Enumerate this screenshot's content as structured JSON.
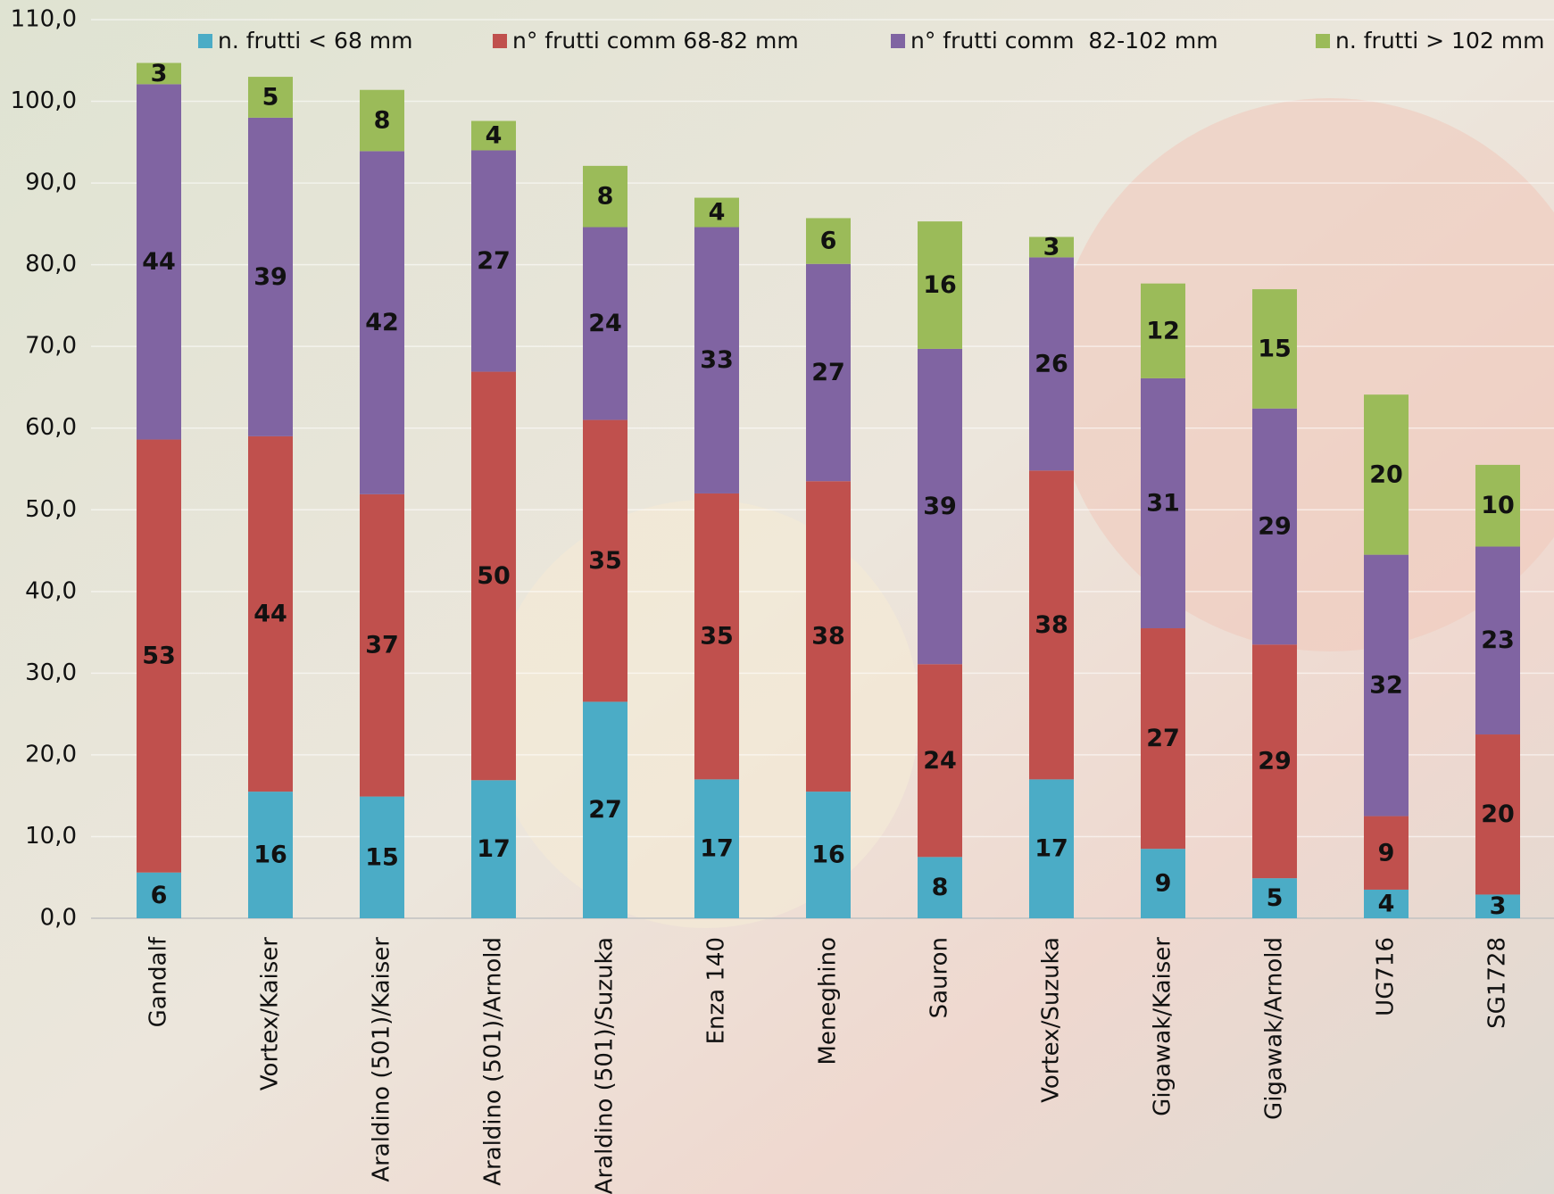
{
  "chart_data": {
    "type": "stacked-bar",
    "categories": [
      "Gandalf",
      "Vortex/Kaiser",
      "Araldino (501)/Kaiser",
      "Araldino (501)/Arnold",
      "Araldino (501)/Suzuka",
      "Enza 140",
      "Meneghino",
      "Sauron",
      "Vortex/Suzuka",
      "Gigawak/Kaiser",
      "Gigawak/Arnold",
      "UG716",
      "SG1728"
    ],
    "series": [
      {
        "name": "n. frutti < 68 mm",
        "color": "#4bacc6",
        "label_color": "#111111",
        "values": [
          5.6,
          15.5,
          14.9,
          16.9,
          26.5,
          17.0,
          15.5,
          7.5,
          17.0,
          8.5,
          4.9,
          3.5,
          2.9
        ],
        "value_labels": [
          "6",
          "16",
          "15",
          "17",
          "27",
          "17",
          "16",
          "8",
          "17",
          "9",
          "5",
          "4",
          "3"
        ]
      },
      {
        "name": "n° frutti comm 68-82 mm",
        "color": "#c0504d",
        "label_color": "#ffffff",
        "values": [
          53.0,
          43.5,
          37.0,
          50.0,
          34.5,
          35.0,
          38.0,
          23.6,
          37.8,
          27.0,
          28.6,
          9.0,
          19.6
        ],
        "value_labels": [
          "53",
          "44",
          "37",
          "50",
          "35",
          "35",
          "38",
          "24",
          "38",
          "27",
          "29",
          "9",
          "20"
        ]
      },
      {
        "name": "n° frutti comm  82-102 mm",
        "color": "#8064a2",
        "label_color": "#ffffff",
        "values": [
          43.5,
          39.0,
          42.0,
          27.1,
          23.6,
          32.6,
          26.6,
          38.6,
          26.1,
          30.6,
          28.9,
          32.0,
          23.0
        ],
        "value_labels": [
          "44",
          "39",
          "42",
          "27",
          "24",
          "33",
          "27",
          "39",
          "26",
          "31",
          "29",
          "32",
          "23"
        ]
      },
      {
        "name": "n. frutti > 102 mm",
        "color": "#9bbb59",
        "label_color": "#111111",
        "values": [
          2.6,
          5.0,
          7.5,
          3.6,
          7.5,
          3.6,
          5.6,
          15.6,
          2.5,
          11.6,
          14.6,
          19.6,
          10.0
        ],
        "value_labels": [
          "3",
          "5",
          "8",
          "4",
          "8",
          "4",
          "6",
          "16",
          "3",
          "12",
          "15",
          "20",
          "10"
        ]
      }
    ],
    "ylim": [
      0,
      110
    ],
    "yticks": [
      {
        "value": 0,
        "label": "0,0"
      },
      {
        "value": 10,
        "label": "10,0"
      },
      {
        "value": 20,
        "label": "20,0"
      },
      {
        "value": 30,
        "label": "30,0"
      },
      {
        "value": 40,
        "label": "40,0"
      },
      {
        "value": 50,
        "label": "50,0"
      },
      {
        "value": 60,
        "label": "60,0"
      },
      {
        "value": 70,
        "label": "70,0"
      },
      {
        "value": 80,
        "label": "80,0"
      },
      {
        "value": 90,
        "label": "90,0"
      },
      {
        "value": 100,
        "label": "100,0"
      },
      {
        "value": 110,
        "label": "110,0"
      }
    ],
    "grid": true,
    "legend": "top"
  }
}
